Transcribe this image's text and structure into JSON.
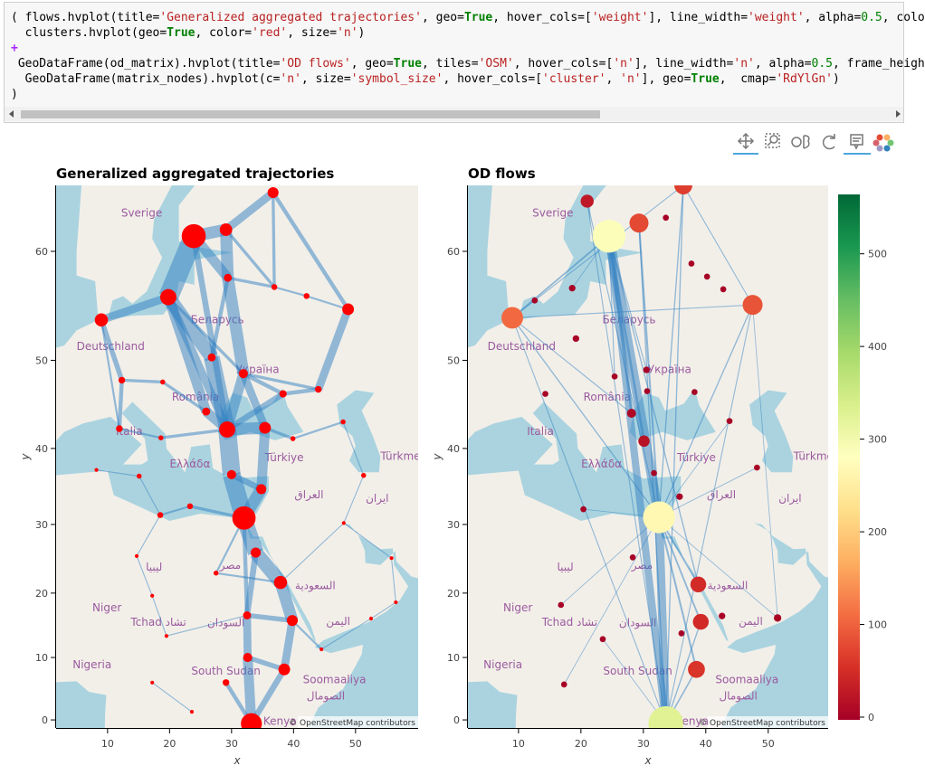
{
  "notebook": {
    "code_lines": [
      "( flows.hvplot(title='Generalized aggregated trajectories', geo=True, hover_cols=['weight'], line_width='weight', alpha=0.5, colo",
      "  clusters.hvplot(geo=True, color='red', size='n')",
      "+",
      " GeoDataFrame(od_matrix).hvplot(title='OD flows', geo=True, tiles='OSM', hover_cols=['n'], line_width='n', alpha=0.5, frame_heigh",
      "  GeoDataFrame(matrix_nodes).hvplot(c='n', size='symbol_size', hover_cols=['cluster', 'n'], geo=True,  cmap='RdYlGn')",
      ")"
    ]
  },
  "map_labels": [
    "Sverige",
    "Deutschland",
    "Беларусь",
    "Україна",
    "România",
    "Italia",
    "Ελλάδα",
    "Türkiye",
    "العراق",
    "ایران",
    "Türkmen",
    "Niger",
    "Tchad تشاد",
    "السودان",
    "South Sudan",
    "Nigeria",
    "Soomaaliya",
    "الصومال",
    "اليمن",
    "السعودية",
    "مصر",
    "ليبيا",
    "Kenya"
  ],
  "chart_data": [
    {
      "type": "map-flow",
      "title": "Generalized aggregated trajectories",
      "x_label": "x",
      "y_label": "y",
      "xlim": [
        1.7,
        60.1
      ],
      "ylim": [
        -1.3,
        64.9
      ],
      "y_scale": "mercator",
      "xticks": [
        10,
        20,
        30,
        40,
        50
      ],
      "yticks": [
        0,
        10,
        20,
        30,
        40,
        50,
        60
      ],
      "attribution": "© OpenStreetMap contributors",
      "line_color": "#2f7fc1",
      "line_alpha": 0.5,
      "node_color": "#ff0000",
      "nodes": {
        "x": [
          23.9,
          29.1,
          36.7,
          19.8,
          9.0,
          48.8,
          29.4,
          36.9,
          42.1,
          31.9,
          26.8,
          12.3,
          18.9,
          25.9,
          38.3,
          44.0,
          29.3,
          35.4,
          11.9,
          18.6,
          39.9,
          48.0,
          8.2,
          15.1,
          30.0,
          34.8,
          51.3,
          32.0,
          18.5,
          23.3,
          48.1,
          33.9,
          27.5,
          37.9,
          14.7,
          17.2,
          39.8,
          32.5,
          19.5,
          44.5,
          32.6,
          38.5,
          29.1,
          33.2,
          55.8,
          56.5,
          52.5,
          17.2,
          23.6
        ],
        "y": [
          61.2,
          61.7,
          64.4,
          56.1,
          54.0,
          55.0,
          57.8,
          57.0,
          56.2,
          48.6,
          50.3,
          47.9,
          47.7,
          44.4,
          46.4,
          46.9,
          42.3,
          42.5,
          42.4,
          41.3,
          41.2,
          43.2,
          37.3,
          36.5,
          36.7,
          34.8,
          36.6,
          30.9,
          31.3,
          32.5,
          30.2,
          26.0,
          23.0,
          21.6,
          25.5,
          19.6,
          15.8,
          16.6,
          13.4,
          11.3,
          10.0,
          8.1,
          6.0,
          -0.6,
          25.2,
          18.6,
          16.1,
          6.0,
          1.3
        ],
        "n": [
          64,
          16,
          12,
          28,
          18,
          14,
          6,
          3,
          3,
          8,
          6,
          4,
          2,
          6,
          5,
          4,
          28,
          14,
          4,
          2,
          2,
          2,
          1,
          2,
          8,
          10,
          2,
          60,
          3,
          3,
          1,
          10,
          2,
          18,
          1,
          1,
          12,
          6,
          1,
          1,
          8,
          14,
          4,
          48,
          1,
          1,
          1,
          1,
          1
        ]
      },
      "edges": {
        "from": [
          0,
          0,
          1,
          0,
          1,
          3,
          3,
          3,
          6,
          10,
          9,
          9,
          13,
          16,
          16,
          24,
          17,
          25,
          27,
          31,
          33,
          36,
          37,
          31,
          40,
          41,
          40,
          42,
          2,
          2,
          5,
          15,
          14,
          14,
          7,
          8,
          4,
          11,
          11,
          18,
          19,
          12,
          6,
          9,
          17,
          20,
          21,
          26,
          30,
          44,
          45,
          46,
          39,
          33,
          22,
          23,
          28,
          29,
          28,
          34,
          35,
          38,
          32,
          32,
          47,
          0,
          3,
          6,
          3,
          4,
          1,
          27,
          36,
          24
        ],
        "to": [
          3,
          1,
          2,
          6,
          6,
          4,
          10,
          13,
          9,
          16,
          16,
          17,
          16,
          17,
          24,
          27,
          25,
          27,
          31,
          33,
          36,
          41,
          40,
          37,
          43,
          43,
          41,
          43,
          7,
          5,
          15,
          14,
          16,
          9,
          8,
          5,
          11,
          12,
          18,
          19,
          16,
          13,
          7,
          15,
          20,
          21,
          26,
          30,
          44,
          45,
          46,
          39,
          36,
          30,
          23,
          28,
          29,
          27,
          34,
          35,
          38,
          37,
          27,
          33,
          48,
          16,
          16,
          10,
          9,
          18,
          7,
          37,
          37,
          25
        ],
        "weight": [
          20,
          12,
          8,
          10,
          12,
          8,
          14,
          10,
          12,
          16,
          10,
          8,
          10,
          12,
          18,
          18,
          10,
          12,
          16,
          14,
          12,
          8,
          8,
          6,
          10,
          6,
          5,
          4,
          3,
          4,
          8,
          4,
          6,
          4,
          2,
          2,
          5,
          3,
          4,
          2,
          3,
          3,
          3,
          3,
          3,
          2,
          1,
          1,
          1,
          1,
          1,
          1,
          2,
          1,
          1,
          1,
          2,
          3,
          1,
          1,
          1,
          1,
          2,
          2,
          1,
          6,
          8,
          4,
          3,
          2,
          3,
          4,
          5,
          6
        ]
      }
    },
    {
      "type": "map-flow",
      "title": "OD flows",
      "x_label": "x",
      "y_label": "y",
      "xlim": [
        1.9,
        59.6
      ],
      "ylim": [
        -1.3,
        64.9
      ],
      "y_scale": "mercator",
      "xticks": [
        10,
        20,
        30,
        40,
        50
      ],
      "yticks": [
        0,
        10,
        20,
        30,
        40,
        50,
        60
      ],
      "attribution": "© OpenStreetMap contributors",
      "line_color": "#2f7fc1",
      "line_alpha": 0.5,
      "colorbar": {
        "clim": [
          0,
          567
        ],
        "ticks": [
          0,
          100,
          200,
          300,
          400,
          500
        ],
        "colors": [
          "#a50026",
          "#d73027",
          "#f46d43",
          "#fdae61",
          "#fee08b",
          "#ffffbf",
          "#d9ef8b",
          "#a6d96a",
          "#66bd63",
          "#1a9850",
          "#006837"
        ]
      },
      "nodes": {
        "x": [
          24.5,
          32.5,
          33.6,
          9.0,
          47.5,
          29.3,
          36.4,
          21.0,
          38.8,
          39.2,
          38.5,
          30.1,
          28.1,
          51.5,
          18.6,
          12.6,
          19.2,
          30.5,
          30.6,
          38.2,
          43.8,
          48.2,
          20.4,
          17.3,
          36.1,
          42.6,
          28.3,
          23.5,
          16.8,
          37.7,
          40.2,
          42.8,
          33.6,
          35.8,
          31.7,
          14.3,
          25.4
        ],
        "y": [
          61.2,
          31.0,
          -0.6,
          54.2,
          55.4,
          62.2,
          64.9,
          63.8,
          21.3,
          15.6,
          8.1,
          40.9,
          44.2,
          16.2,
          56.9,
          55.8,
          52.2,
          49.0,
          46.7,
          46.6,
          43.3,
          37.6,
          32.1,
          5.7,
          13.8,
          16.5,
          25.3,
          12.9,
          18.2,
          59.0,
          57.9,
          56.8,
          62.6,
          33.8,
          36.9,
          46.4,
          48.3
        ],
        "n": [
          290,
          270,
          330,
          110,
          90,
          80,
          70,
          30,
          50,
          50,
          60,
          20,
          10,
          5,
          3,
          2,
          3,
          3,
          2,
          2,
          2,
          2,
          2,
          2,
          2,
          3,
          2,
          2,
          2,
          2,
          2,
          2,
          2,
          3,
          2,
          2,
          2
        ]
      },
      "edges": {
        "from": [
          0,
          0,
          1,
          0,
          0,
          0,
          5,
          6,
          6,
          4,
          4,
          3,
          3,
          1,
          1,
          1,
          2,
          2,
          0,
          0,
          7,
          6,
          6,
          4,
          13,
          13,
          3,
          1,
          1,
          2,
          1,
          0,
          5,
          1,
          1,
          0,
          7
        ],
        "to": [
          1,
          2,
          2,
          3,
          12,
          11,
          1,
          2,
          1,
          1,
          3,
          1,
          2,
          8,
          9,
          10,
          10,
          9,
          8,
          17,
          1,
          4,
          3,
          2,
          4,
          1,
          12,
          22,
          23,
          27,
          28,
          36,
          2,
          20,
          21,
          14,
          2
        ],
        "weight": [
          40,
          30,
          35,
          5,
          8,
          8,
          6,
          3,
          3,
          3,
          2,
          3,
          2,
          5,
          5,
          6,
          4,
          3,
          3,
          2,
          2,
          2,
          2,
          2,
          1,
          1,
          2,
          1,
          1,
          1,
          1,
          2,
          3,
          1,
          1,
          1,
          2
        ]
      }
    }
  ]
}
